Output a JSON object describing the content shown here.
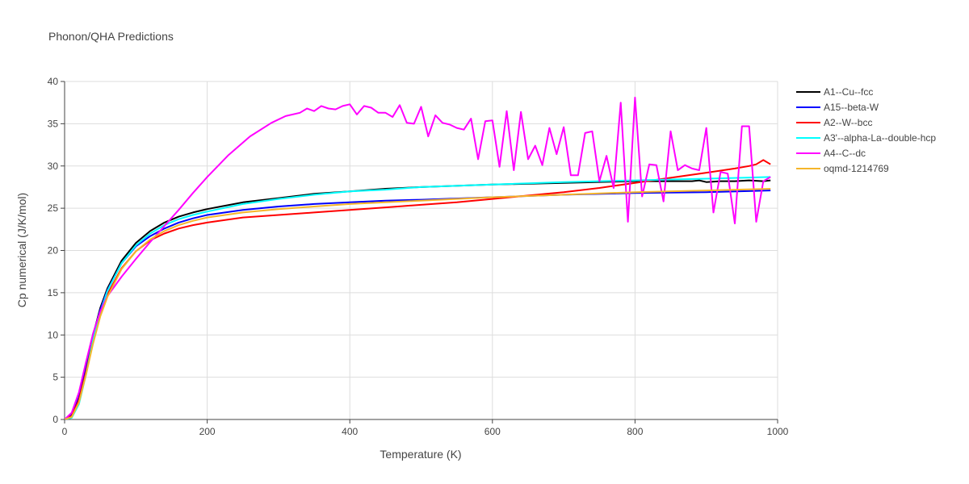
{
  "chart_data": {
    "type": "line",
    "title": "Phonon/QHA Predictions",
    "xlabel": "Temperature (K)",
    "ylabel": "Cp numerical (J/K/mol)",
    "xlim": [
      0,
      1000
    ],
    "ylim": [
      0,
      40
    ],
    "x_ticks": [
      0,
      200,
      400,
      600,
      800,
      1000
    ],
    "y_ticks": [
      0,
      5,
      10,
      15,
      20,
      25,
      30,
      35,
      40
    ],
    "grid": true,
    "legend_position": "top-right",
    "series": [
      {
        "name": "A1--Cu--fcc",
        "color": "#000000",
        "x": [
          0,
          10,
          20,
          30,
          40,
          50,
          60,
          80,
          100,
          120,
          140,
          160,
          180,
          200,
          250,
          300,
          350,
          400,
          450,
          500,
          600,
          700,
          800,
          850,
          880,
          890,
          900,
          920,
          940,
          960,
          980,
          990
        ],
        "y": [
          0,
          0.5,
          2.5,
          6.0,
          10.0,
          13.2,
          15.5,
          18.8,
          20.9,
          22.3,
          23.3,
          24.0,
          24.5,
          24.9,
          25.7,
          26.2,
          26.7,
          27.0,
          27.3,
          27.5,
          27.8,
          28.0,
          28.2,
          28.2,
          28.2,
          28.3,
          28.1,
          28.2,
          28.2,
          28.3,
          28.2,
          28.3
        ]
      },
      {
        "name": "A15--beta-W",
        "color": "#0000ff",
        "x": [
          0,
          10,
          20,
          30,
          40,
          50,
          60,
          80,
          100,
          120,
          140,
          160,
          180,
          200,
          250,
          300,
          350,
          400,
          450,
          500,
          600,
          700,
          800,
          900,
          990
        ],
        "y": [
          0,
          0.5,
          2.6,
          6.0,
          10.0,
          13.0,
          15.3,
          18.5,
          20.5,
          21.7,
          22.6,
          23.3,
          23.8,
          24.2,
          24.8,
          25.2,
          25.5,
          25.7,
          25.9,
          26.0,
          26.3,
          26.6,
          26.8,
          26.9,
          27.1
        ]
      },
      {
        "name": "A2--W--bcc",
        "color": "#ff0000",
        "x": [
          0,
          10,
          20,
          30,
          40,
          50,
          60,
          80,
          100,
          120,
          140,
          160,
          180,
          200,
          250,
          300,
          350,
          400,
          450,
          500,
          550,
          600,
          650,
          700,
          750,
          800,
          850,
          900,
          940,
          960,
          970,
          980,
          990
        ],
        "y": [
          0,
          0.4,
          2.3,
          5.6,
          9.5,
          12.6,
          14.8,
          17.9,
          19.9,
          21.2,
          22.0,
          22.6,
          23.0,
          23.3,
          23.9,
          24.2,
          24.5,
          24.8,
          25.1,
          25.4,
          25.7,
          26.1,
          26.5,
          26.9,
          27.4,
          28.0,
          28.6,
          29.2,
          29.7,
          30.0,
          30.2,
          30.7,
          30.2
        ]
      },
      {
        "name": "A3'--alpha-La--double-hcp",
        "color": "#00ffff",
        "x": [
          0,
          10,
          20,
          30,
          40,
          50,
          60,
          80,
          100,
          120,
          140,
          160,
          180,
          200,
          250,
          300,
          350,
          400,
          450,
          500,
          600,
          700,
          800,
          900,
          950,
          990
        ],
        "y": [
          0,
          0.2,
          1.8,
          5.3,
          9.4,
          12.7,
          15.2,
          18.5,
          20.6,
          22.0,
          23.0,
          23.7,
          24.2,
          24.6,
          25.5,
          26.1,
          26.6,
          27.0,
          27.2,
          27.5,
          27.8,
          28.1,
          28.3,
          28.5,
          28.6,
          28.7
        ]
      },
      {
        "name": "A4--C--dc",
        "color": "#ff00ff",
        "x": [
          0,
          10,
          20,
          30,
          40,
          50,
          60,
          80,
          100,
          120,
          140,
          160,
          180,
          200,
          230,
          260,
          290,
          310,
          330,
          340,
          350,
          360,
          370,
          380,
          390,
          400,
          410,
          420,
          430,
          440,
          450,
          460,
          470,
          480,
          490,
          500,
          510,
          520,
          530,
          540,
          550,
          560,
          570,
          580,
          590,
          600,
          610,
          620,
          630,
          640,
          650,
          660,
          670,
          680,
          690,
          700,
          710,
          720,
          730,
          740,
          750,
          760,
          770,
          780,
          790,
          800,
          810,
          820,
          830,
          840,
          850,
          860,
          870,
          880,
          890,
          900,
          910,
          920,
          930,
          940,
          950,
          960,
          970,
          980,
          990
        ],
        "y": [
          0,
          0.8,
          3.2,
          6.8,
          10.2,
          12.8,
          14.6,
          16.9,
          19.0,
          21.0,
          22.9,
          24.8,
          26.8,
          28.7,
          31.3,
          33.5,
          35.1,
          35.9,
          36.3,
          36.8,
          36.5,
          37.1,
          36.8,
          36.7,
          37.1,
          37.3,
          36.1,
          37.1,
          36.9,
          36.3,
          36.3,
          35.8,
          37.2,
          35.1,
          35.0,
          37.0,
          33.5,
          36.0,
          35.1,
          34.9,
          34.5,
          34.3,
          35.6,
          30.8,
          35.3,
          35.4,
          29.9,
          36.5,
          29.5,
          36.4,
          30.8,
          32.4,
          30.1,
          34.5,
          31.4,
          34.6,
          28.9,
          28.9,
          33.9,
          34.1,
          28.2,
          31.2,
          27.4,
          37.5,
          23.4,
          38.1,
          26.4,
          30.2,
          30.1,
          25.8,
          34.1,
          29.5,
          30.1,
          29.7,
          29.5,
          34.5,
          24.5,
          29.3,
          29.1,
          23.2,
          34.7,
          34.7,
          23.4,
          28.2,
          28.7
        ]
      },
      {
        "name": "oqmd-1214769",
        "color": "#f5b52a",
        "x": [
          0,
          10,
          20,
          30,
          40,
          50,
          60,
          80,
          100,
          120,
          140,
          160,
          180,
          200,
          250,
          300,
          350,
          400,
          450,
          500,
          600,
          700,
          800,
          900,
          990
        ],
        "y": [
          0,
          0.3,
          2.0,
          5.3,
          9.0,
          12.2,
          14.5,
          17.8,
          19.9,
          21.3,
          22.3,
          23.0,
          23.5,
          23.9,
          24.5,
          24.9,
          25.2,
          25.5,
          25.7,
          25.9,
          26.3,
          26.6,
          26.9,
          27.1,
          27.3
        ]
      }
    ]
  }
}
